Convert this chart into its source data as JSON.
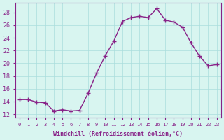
{
  "x": [
    0,
    1,
    2,
    3,
    4,
    5,
    6,
    7,
    8,
    9,
    10,
    11,
    12,
    13,
    14,
    15,
    16,
    17,
    18,
    19,
    20,
    21,
    22,
    23
  ],
  "y": [
    14.3,
    14.3,
    13.9,
    13.8,
    12.5,
    12.7,
    12.5,
    12.6,
    15.3,
    18.5,
    21.2,
    23.5,
    26.6,
    27.2,
    27.4,
    27.2,
    28.6,
    26.8,
    26.5,
    25.7,
    23.2,
    21.1,
    19.6,
    19.8
  ],
  "line_color": "#882288",
  "marker": "+",
  "bg_color": "#d8f5f0",
  "grid_color": "#aadddd",
  "xlabel": "Windchill (Refroidissement éolien,°C)",
  "ylabel_ticks": [
    12,
    14,
    16,
    18,
    20,
    22,
    24,
    26,
    28
  ],
  "xlim": [
    -0.5,
    23.5
  ],
  "ylim": [
    11.5,
    29.5
  ],
  "tick_color": "#882288",
  "label_color": "#882288"
}
